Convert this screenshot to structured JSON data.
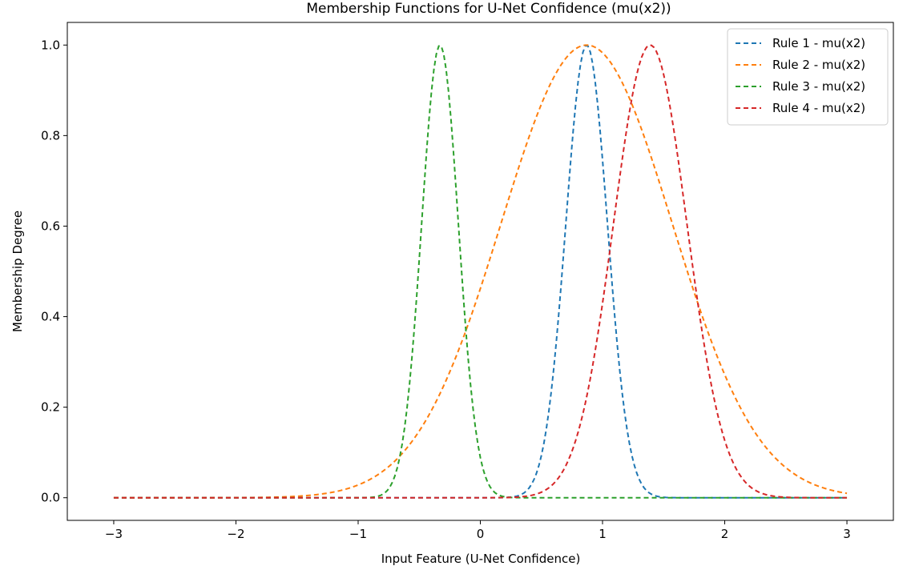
{
  "chart_data": {
    "type": "line",
    "title": "Membership Functions for U-Net Confidence (mu(x2))",
    "xlabel": "Input Feature (U-Net Confidence)",
    "ylabel": "Membership Degree",
    "xlim": [
      -3.38,
      3.38
    ],
    "ylim": [
      -0.05,
      1.05
    ],
    "xticks": [
      -3,
      -2,
      -1,
      0,
      1,
      2,
      3
    ],
    "xtick_labels": [
      "−3",
      "−2",
      "−1",
      "0",
      "1",
      "2",
      "3"
    ],
    "yticks": [
      0.0,
      0.2,
      0.4,
      0.6,
      0.8,
      1.0
    ],
    "ytick_labels": [
      "0.0",
      "0.2",
      "0.4",
      "0.6",
      "0.8",
      "1.0"
    ],
    "grid": false,
    "legend_position": "top-right",
    "line_style": "dashed",
    "x_range": [
      -3,
      3
    ],
    "series": [
      {
        "name": "Rule 1 - mu(x2)",
        "shape": "gaussian",
        "center": 0.87,
        "sigma": 0.17,
        "color": "#1f77b4"
      },
      {
        "name": "Rule 2 - mu(x2)",
        "shape": "gaussian",
        "center": 0.87,
        "sigma": 0.7,
        "color": "#ff7f0e"
      },
      {
        "name": "Rule 3 - mu(x2)",
        "shape": "gaussian",
        "center": -0.33,
        "sigma": 0.15,
        "color": "#2ca02c"
      },
      {
        "name": "Rule 4 - mu(x2)",
        "shape": "gaussian",
        "center": 1.39,
        "sigma": 0.3,
        "color": "#d62728"
      }
    ]
  }
}
